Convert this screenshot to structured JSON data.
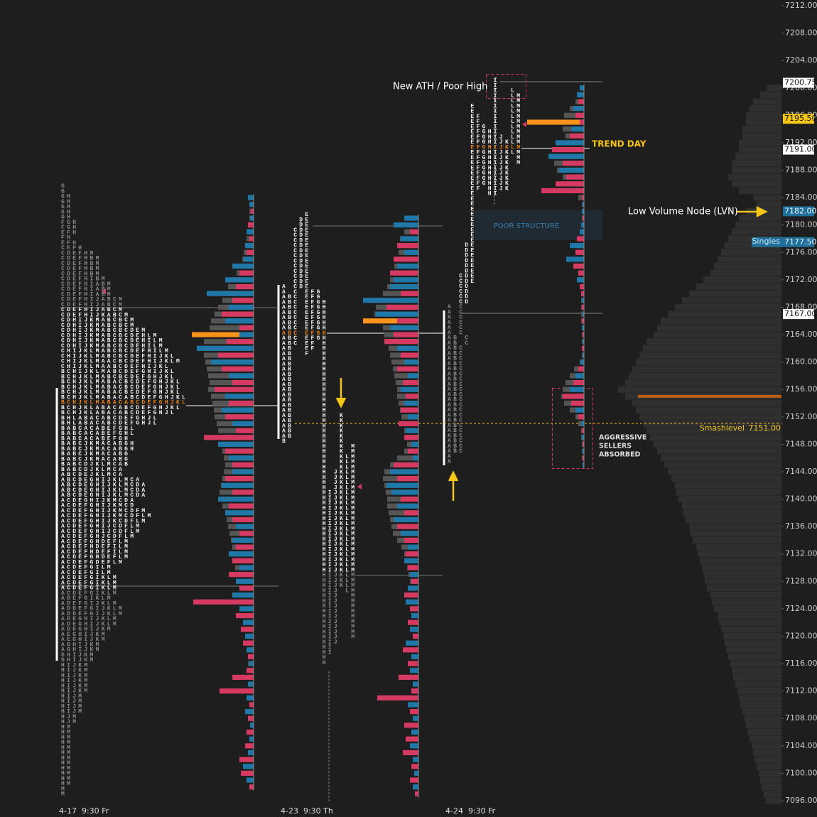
{
  "chart_data": {
    "type": "market_profile",
    "ylim": [
      7096,
      7212
    ],
    "yticks": [
      {
        "value": 7212,
        "label": "7212.00"
      },
      {
        "value": 7208,
        "label": "7208.00"
      },
      {
        "value": 7204,
        "label": "7204.00"
      },
      {
        "value": 7200,
        "label": "7200.00"
      },
      {
        "value": 7196,
        "label": "7196.00"
      },
      {
        "value": 7192,
        "label": "7192.00"
      },
      {
        "value": 7188,
        "label": "7188.00"
      },
      {
        "value": 7184,
        "label": "7184.00"
      },
      {
        "value": 7180,
        "label": "7180.00"
      },
      {
        "value": 7176,
        "label": "7176.00"
      },
      {
        "value": 7172,
        "label": "7172.00"
      },
      {
        "value": 7168,
        "label": "7168.00"
      },
      {
        "value": 7164,
        "label": "7164.00"
      },
      {
        "value": 7160,
        "label": "7160.00"
      },
      {
        "value": 7156,
        "label": "7156.00"
      },
      {
        "value": 7152,
        "label": "7152.00"
      },
      {
        "value": 7148,
        "label": "7148.00"
      },
      {
        "value": 7144,
        "label": "7144.00"
      },
      {
        "value": 7140,
        "label": "7140.00"
      },
      {
        "value": 7136,
        "label": "7136.00"
      },
      {
        "value": 7132,
        "label": "7132.00"
      },
      {
        "value": 7128,
        "label": "7128.00"
      },
      {
        "value": 7124,
        "label": "7124.00"
      },
      {
        "value": 7120,
        "label": "7120.00"
      },
      {
        "value": 7116,
        "label": "7116.00"
      },
      {
        "value": 7112,
        "label": "7112.00"
      },
      {
        "value": 7108,
        "label": "7108.00"
      },
      {
        "value": 7104,
        "label": "7104.00"
      },
      {
        "value": 7100,
        "label": "7100.00"
      },
      {
        "value": 7096,
        "label": "7096.00"
      }
    ],
    "price_labels": [
      {
        "value": 7200.75,
        "label": "7200.75",
        "color": "#ffffff"
      },
      {
        "value": 7195.5,
        "label": "7195.50",
        "color": "#f5c518"
      },
      {
        "value": 7191,
        "label": "7191.00",
        "color": "#ffffff"
      },
      {
        "value": 7182,
        "label": "7182.00",
        "color": "#1f6f9a"
      },
      {
        "value": 7177.5,
        "label": "7177.50",
        "color": "#1f6f9a"
      },
      {
        "value": 7167,
        "label": "7167.00",
        "color": "#ffffff"
      }
    ],
    "singles_label": "Singles",
    "smash": {
      "name": "Smashlevel",
      "value": 7151,
      "label": "7151.00"
    },
    "annotations": {
      "ath": "New ATH / Poor High",
      "trend": "TREND DAY",
      "lvn": "Low Volume Node (LVN)",
      "poor": "POOR STRUCTURE",
      "absorbed": [
        "AGGRESSIVE",
        "SELLERS",
        "ABSORBED"
      ]
    },
    "tick_size": 1,
    "profiles": [
      {
        "date_label": "4-17  9:30 Fr",
        "top": 7184,
        "poc": 7164,
        "volume": [
          4,
          5,
          6,
          6,
          8,
          8,
          10,
          12,
          14,
          16,
          20,
          24,
          30,
          36,
          40,
          44,
          50,
          55,
          60,
          62,
          87,
          70,
          72,
          70,
          68,
          66,
          64,
          62,
          64,
          60,
          58,
          56,
          55,
          52,
          50,
          48,
          46,
          44,
          42,
          40,
          42,
          44,
          46,
          48,
          46,
          44,
          40,
          38,
          36,
          34,
          32,
          30,
          30,
          28,
          26,
          24,
          22,
          20,
          18,
          18,
          16,
          15,
          14,
          12,
          12,
          10,
          10,
          8,
          8,
          7,
          6,
          6,
          6,
          5,
          5,
          5,
          4,
          4,
          4,
          4,
          4,
          4,
          10,
          15,
          12,
          8,
          3
        ],
        "delta": [
          8,
          6,
          -4,
          5,
          -8,
          10,
          -6,
          12,
          -10,
          14,
          30,
          -20,
          40,
          -25,
          66,
          -30,
          35,
          -45,
          40,
          -20,
          20,
          -38,
          80,
          -50,
          60,
          -45,
          35,
          -30,
          -55,
          40,
          -35,
          45,
          -40,
          30,
          -25,
          -70,
          50,
          -40,
          35,
          -30,
          30,
          -40,
          45,
          -30,
          50,
          -35,
          40,
          -30,
          25,
          -20,
          30,
          -25,
          35,
          -30,
          20,
          -35,
          25,
          -20,
          30,
          -85,
          20,
          -25,
          15,
          -18,
          12,
          -15,
          10,
          -8,
          6,
          -10,
          -30,
          8,
          -48,
          10,
          -6,
          12,
          -8,
          5,
          -10,
          6,
          -12,
          8,
          -20,
          15,
          -18,
          10,
          -6
        ],
        "tpo_rows": [
          "G",
          "G",
          "GH",
          "GH",
          "GH",
          "GH",
          "GH",
          "FGH",
          "FGH",
          "EFH",
          "FH",
          "EFH",
          "CEFH",
          "CDEFHM",
          "CDEFHBM",
          "CDEFHBM",
          "CDEFHBM",
          "CDEFHBM",
          "CDEFHIBM",
          "CDEFHIABM",
          "CDEFHIABM",
          "CDEFHIABM",
          "CDEFHIJABCM",
          "CDEFHIJABCM",
          "CDEFHIJABCM",
          "CDEFHIJKABCM",
          "CDHIJKMABCBCM",
          "CDHIJKMABCBCM",
          "CDHIJKMABCBCDEM",
          "CDHIJKMABCBCDEHLM",
          "CDHIJKMABCBCDEHILM",
          "CDHIJKMABCBCDEHILM",
          "CHIJKLMABCBCDEFHILM",
          "CHIJKLMABCBCDEFHIJKL",
          "CHIJKLMAACBCDEFHIJKLM",
          "CHIJKLMAABCDEFHIJKL",
          "BCHIJKLMABCDEFGHIJKL",
          "BCHJKLMABCBCDEFGHJKL",
          "BCHJKLMABACBCDEFGHJKL",
          "BCHJKLMABACBCDEFGHJKL",
          "BCHJKLMABACBCDEFGHJKL",
          "BCHJKLMABACABCDEFGHJKL",
          "BCHJKLMABACABCDEFGHJKL",
          "BCHJKLABACABCDEFGHJKL",
          "BCHJKLABACABCDEFGHJL",
          "BHLABACABCDEFGHJL",
          "BHLABACABCDEFGHJL",
          "BABCACABEFGHL",
          "BABCACABEFGHL",
          "BABCACABEFGH",
          "BABCJKMACABGH",
          "BABCJKMACABGH",
          "BABCJKMACABG",
          "BABCJKMACABG",
          "BABCDJKLMCAB",
          "BABCDJKLMCA",
          "ABCDEJKLMCA",
          "ABCDEGHIJKLMCA",
          "ABCDEGHIJKLMCDA",
          "ABCDEGHIJKLMCDA",
          "ABCDEGHIJKLMCDA",
          "ACDEGHIJKMCDA",
          "ACDEFGHIJKMCD",
          "ACDEFGHIJKMCDFM",
          "ACDEFGHIJKMCDFLM",
          "ACDEFGHIJKCDFLM",
          "ACDEFGHIJCDFLM",
          "ACDEFGHIJCDFLM",
          "ACDEFGHJCDFLM",
          "ACDEFGHDEFLM",
          "ACDEFHDEFILM",
          "ACDEFHDEFILM",
          "ACDEFGHDEFLM",
          "ACDEFGDEFLM",
          "ACDEFGILM",
          "ACDEFGILM",
          "ACDEFGIKLM",
          "ACDEFGIKLM",
          "ACDEFGIKLM",
          "ACDEFGIKLM",
          "ADEFGIKLM",
          "ADEFGIJKLM",
          "ADDEFGIJKLM",
          "ADDEFGIJKLM",
          "ADEGHIJKLM",
          "ADEGHIJKLM",
          "ADEGHIJKM",
          "AEGHIJKM",
          "AEGHIJKM",
          "AGHIJKM",
          "AGHIJKM",
          "GHIJKM",
          "GHIJKM",
          "HIJKM",
          "HIJKM",
          "HIJKM",
          "HIJKM",
          "HIJKM",
          "HIJKM",
          "HIJM",
          "HIJM",
          "HIJM",
          "HIJM",
          "HJM",
          "HJM",
          "HM",
          "HM",
          "HM",
          "HM",
          "HM",
          "HM",
          "HM",
          "HM",
          "HM",
          "HM",
          "HM",
          "HM",
          "M",
          "M"
        ]
      },
      {
        "date_label": "4-23  9:30 Th",
        "top": 7181,
        "poc": 7166,
        "volume": [
          4,
          10,
          20,
          26,
          30,
          28,
          30,
          34,
          36,
          40,
          44,
          50,
          55,
          60,
          62,
          78,
          50,
          48,
          45,
          42,
          40,
          38,
          36,
          34,
          32,
          30,
          30,
          28,
          26,
          24,
          22,
          20,
          18,
          16,
          20,
          30,
          40,
          48,
          50,
          48,
          46,
          44,
          44,
          42,
          40,
          38,
          36,
          30,
          24,
          20,
          18,
          16,
          14,
          12,
          10,
          10,
          8,
          8,
          6,
          6,
          6,
          5,
          5,
          4,
          4,
          4,
          4,
          4,
          3,
          3,
          3,
          3,
          3,
          3,
          3,
          3,
          3,
          3,
          3,
          3,
          3,
          3,
          3,
          3,
          3
        ],
        "delta": [
          20,
          35,
          -12,
          25,
          -30,
          20,
          -35,
          30,
          -40,
          35,
          40,
          -25,
          78,
          -45,
          60,
          -30,
          40,
          -35,
          -48,
          30,
          -25,
          20,
          -30,
          15,
          -22,
          25,
          -18,
          20,
          -25,
          15,
          -28,
          18,
          -20,
          10,
          -15,
          8,
          -35,
          40,
          -30,
          45,
          38,
          -25,
          30,
          -20,
          35,
          -30,
          25,
          -20,
          15,
          -18,
          20,
          -15,
          12,
          -10,
          15,
          -20,
          18,
          -12,
          10,
          -15,
          12,
          -8,
          18,
          -22,
          10,
          -15,
          12,
          -28,
          8,
          -10,
          -58,
          15,
          -12,
          8,
          -20,
          10,
          -18,
          12,
          -22,
          8,
          -10,
          6,
          -12,
          8,
          -5
        ],
        "tpo_rows": [
          "    E",
          "   DE",
          "   DE",
          "  CDE",
          "  CDE",
          "  CDE",
          "  CDE",
          "  CDE",
          "  CDE",
          "  CDE",
          "  CDE",
          "  CDE",
          "  CDE",
          "  CDE",
          "A CDE",
          "A C EFG",
          "ABC EFG",
          "ABC EFGH",
          "ABC EFGH",
          "ABC EFGH",
          "ABC EFGH",
          "ABC EFGH",
          "ABC EFGH",
          "ABC EFGH",
          "ABC EFGH",
          "ABC EF H",
          "AB  EF H",
          "AB  F  H",
          "AB     H",
          "AB     H",
          "AB     H",
          "AB     H",
          "AB     H",
          "AB     H",
          "AB     H",
          "AB     H",
          "AB     H",
          "AB     H",
          "AB     H",
          "AB     H  K",
          "AB     H  K",
          "AB     H  K",
          "AB     H  K",
          "AB     H  K",
          "B      H  K",
          "       H  K M",
          "       H  K M",
          "       H  KLM",
          "       H  KLM",
          "       H  KLM",
          "       H JKLM",
          "       H JKLM",
          "       H JKLM",
          "       H JKLM",
          "       HIJKLM",
          "       HIJKLM",
          "       HIJKLM",
          "       HIJKLM",
          "       HIJKLM",
          "       HIJKLM",
          "       HIJKLM",
          "       HIJKLM",
          "       HIJKLM",
          "       HIJKLM",
          "       HIJKLM",
          "       HIJKLM",
          "       HIJKLM",
          "       HIJKLM",
          "       HIJKLM",
          "       HIJKLM",
          "       HIJKLM",
          "       HIJKLM",
          "       HIJKLM",
          "       HIJ LM",
          "       HIJ  M",
          "       HIJ  M",
          "       HIJ  M",
          "       HIJ  M",
          "       HIJ  M",
          "       HIJ  M",
          "       HIJ  M",
          "       HIJ  M",
          "       HIJ  M",
          "       HIJ",
          "       HI",
          "       HI",
          "       H",
          "       H"
        ]
      },
      {
        "date_label": "4-24  9:30 Fr",
        "top": 7200,
        "poc": 7195,
        "volume": [
          4,
          8,
          12,
          20,
          28,
          80,
          30,
          26,
          35,
          40,
          45,
          42,
          38,
          30,
          25,
          20,
          8,
          3,
          3,
          3,
          3,
          4,
          6,
          10,
          12,
          14,
          10,
          8,
          6,
          4,
          4,
          4,
          4,
          4,
          4,
          3,
          3,
          3,
          3,
          3,
          6,
          14,
          20,
          26,
          30,
          32,
          28,
          20,
          12,
          8,
          4,
          4,
          3,
          3,
          3,
          2
        ],
        "delta": [
          6,
          10,
          -8,
          15,
          -12,
          -6,
          18,
          -20,
          40,
          -45,
          50,
          -30,
          35,
          -25,
          -40,
          -60,
          -3,
          2,
          3,
          -2,
          4,
          6,
          -10,
          20,
          -12,
          25,
          -15,
          -8,
          10,
          -6,
          -4,
          3,
          -3,
          2,
          -3,
          3,
          -2,
          2,
          -3,
          2,
          5,
          -8,
          12,
          -15,
          20,
          -30,
          -18,
          12,
          -8,
          4,
          -3,
          3,
          -2,
          2,
          -2,
          2
        ],
        "tpo_rows": [
          "        I",
          "        I",
          "        I  L",
          "        I  LM",
          "        I  LM",
          "    E   I  LM",
          "    E   I  LM",
          "    EF  I  LM",
          "    EF  I  LM",
          "    EFG I  LM",
          "    EFGHI  LM",
          "    EFGHIJ LM",
          "    EFGHIJKLM",
          "    EFGHIJKLM",
          "    EFGHIJKLM",
          "    EFGHIJK M",
          "    EFGHIJK M",
          "    EFGHIJK",
          "    EFGHIJK",
          "    EFGHIJK",
          "    EFGHIJK",
          "    EF HIJK",
          "    E  HI",
          "    E",
          "    E",
          "    E",
          "    E",
          "    E",
          "    E",
          "    E",
          "    E",
          "    E",
          "   DE",
          "   DE",
          "   DE",
          "   DE",
          "   DE",
          "   DE",
          "  CDE",
          "  CDE",
          "  CD",
          "  CD",
          "  CD",
          "  CD",
          "A C",
          "A C",
          "A C",
          "A C",
          "A C",
          "A C",
          "AB C",
          "AB C",
          "ABC",
          "ABC",
          "ABC",
          "ABC",
          "ABC",
          "ABC",
          "ABC",
          "ABC",
          "ABC",
          "ABC",
          "ABC",
          "ABC",
          "ABC",
          "ABC",
          "ABC",
          "ABC",
          "ABC",
          "ABC",
          "ABC",
          "ABC",
          "ABC",
          "A",
          "A"
        ]
      }
    ],
    "composite": {
      "top": 7200,
      "poc": 7155,
      "volume": [
        20,
        30,
        40,
        45,
        50,
        50,
        55,
        55,
        60,
        60,
        65,
        70,
        70,
        75,
        70,
        60,
        40,
        35,
        50,
        60,
        65,
        70,
        75,
        80,
        85,
        90,
        95,
        100,
        110,
        120,
        130,
        140,
        150,
        160,
        170,
        175,
        180,
        190,
        195,
        200,
        205,
        210,
        215,
        220,
        230,
        220,
        210,
        205,
        200,
        195,
        190,
        185,
        180,
        175,
        170,
        165,
        160,
        155,
        150,
        148,
        145,
        140,
        138,
        135,
        130,
        128,
        125,
        120,
        118,
        115,
        112,
        110,
        108,
        105,
        100,
        98,
        95,
        90,
        88,
        85,
        82,
        80,
        78,
        75,
        72,
        70,
        68,
        65,
        62,
        60,
        58,
        55,
        52,
        50,
        48,
        45,
        42,
        40,
        38,
        35,
        32,
        30,
        28,
        25,
        22
      ]
    }
  }
}
